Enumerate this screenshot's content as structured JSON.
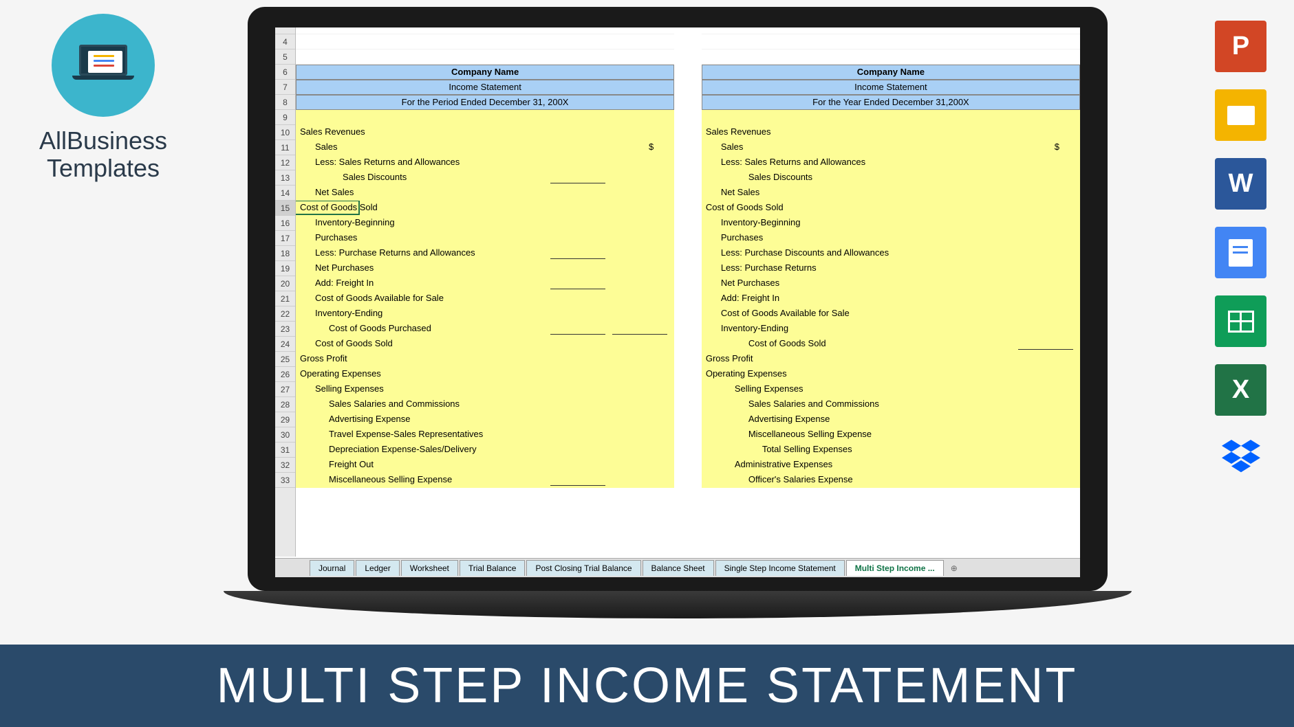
{
  "logo": {
    "line1": "AllBusiness",
    "line2": "Templates"
  },
  "banner": "MULTI STEP INCOME STATEMENT",
  "row_numbers": [
    4,
    5,
    6,
    7,
    8,
    9,
    10,
    11,
    12,
    13,
    14,
    15,
    16,
    17,
    18,
    19,
    20,
    21,
    22,
    23,
    24,
    25,
    26,
    27,
    28,
    29,
    30,
    31,
    32,
    33
  ],
  "panel_left": {
    "header": {
      "company": "Company Name",
      "title": "Income Statement",
      "period": "For the Period Ended December 31, 200X"
    },
    "rows": [
      {
        "t": "Sales Revenues",
        "ind": 0
      },
      {
        "t": "Sales",
        "ind": 1,
        "dollar": true
      },
      {
        "t": "Less:  Sales Returns and Allowances",
        "ind": 1
      },
      {
        "t": "Sales Discounts",
        "ind": 3,
        "ul": true
      },
      {
        "t": "Net Sales",
        "ind": 1
      },
      {
        "t": "Cost of Goods Sold",
        "ind": 0,
        "sel": true
      },
      {
        "t": "Inventory-Beginning",
        "ind": 1
      },
      {
        "t": "Purchases",
        "ind": 1
      },
      {
        "t": "Less:  Purchase Returns and Allowances",
        "ind": 1,
        "ul": true
      },
      {
        "t": "Net Purchases",
        "ind": 1
      },
      {
        "t": "Add:  Freight In",
        "ind": 1,
        "ul": true
      },
      {
        "t": "Cost of Goods Available for Sale",
        "ind": 1
      },
      {
        "t": "Inventory-Ending",
        "ind": 1
      },
      {
        "t": "Cost of Goods Purchased",
        "ind": 2,
        "ul": true,
        "ul2": true
      },
      {
        "t": "Cost of Goods Sold",
        "ind": 1
      },
      {
        "t": "Gross Profit",
        "ind": 0
      },
      {
        "t": "Operating Expenses",
        "ind": 0
      },
      {
        "t": "Selling Expenses",
        "ind": 1
      },
      {
        "t": "Sales Salaries and Commissions",
        "ind": 2
      },
      {
        "t": "Advertising Expense",
        "ind": 2
      },
      {
        "t": "Travel Expense-Sales Representatives",
        "ind": 2
      },
      {
        "t": "Depreciation Expense-Sales/Delivery",
        "ind": 2
      },
      {
        "t": "Freight Out",
        "ind": 2
      },
      {
        "t": "Miscellaneous Selling Expense",
        "ind": 2,
        "ul": true
      }
    ]
  },
  "panel_right": {
    "header": {
      "company": "Company Name",
      "title": "Income Statement",
      "period": "For the Year Ended December 31,200X"
    },
    "rows": [
      {
        "t": "Sales Revenues",
        "ind": 0
      },
      {
        "t": "Sales",
        "ind": 1,
        "dollar": true
      },
      {
        "t": "Less:  Sales Returns and Allowances",
        "ind": 1
      },
      {
        "t": "Sales Discounts",
        "ind": 3
      },
      {
        "t": "Net Sales",
        "ind": 1
      },
      {
        "t": "Cost of Goods Sold",
        "ind": 0
      },
      {
        "t": "Inventory-Beginning",
        "ind": 1
      },
      {
        "t": "Purchases",
        "ind": 1
      },
      {
        "t": "Less:  Purchase Discounts and Allowances",
        "ind": 1
      },
      {
        "t": "Less:  Purchase Returns",
        "ind": 1
      },
      {
        "t": "Net Purchases",
        "ind": 1
      },
      {
        "t": "Add:  Freight In",
        "ind": 1
      },
      {
        "t": "Cost of Goods Available for Sale",
        "ind": 1
      },
      {
        "t": "Inventory-Ending",
        "ind": 1
      },
      {
        "t": "Cost of Goods Sold",
        "ind": 3,
        "ul2": true
      },
      {
        "t": "Gross Profit",
        "ind": 0
      },
      {
        "t": "Operating Expenses",
        "ind": 0
      },
      {
        "t": "Selling Expenses",
        "ind": 2
      },
      {
        "t": "Sales Salaries and Commissions",
        "ind": 3
      },
      {
        "t": "Advertising Expense",
        "ind": 3
      },
      {
        "t": "Miscellaneous Selling Expense",
        "ind": 3
      },
      {
        "t": "Total Selling Expenses",
        "ind": 4
      },
      {
        "t": "Administrative Expenses",
        "ind": 2
      },
      {
        "t": "Officer's Salaries Expense",
        "ind": 3
      }
    ]
  },
  "tabs": [
    "Journal",
    "Ledger",
    "Worksheet",
    "Trial Balance",
    "Post Closing Trial Balance",
    "Balance Sheet",
    "Single Step Income Statement",
    "Multi Step Income ..."
  ],
  "active_tab": 7,
  "icons": [
    "powerpoint",
    "slides",
    "word",
    "docs",
    "sheets",
    "excel",
    "dropbox"
  ],
  "colors": {
    "header_bg": "#a9d0f5",
    "body_bg": "#fdfd96",
    "banner_bg": "#2a4a6a",
    "logo_circle": "#3cb5cc"
  }
}
